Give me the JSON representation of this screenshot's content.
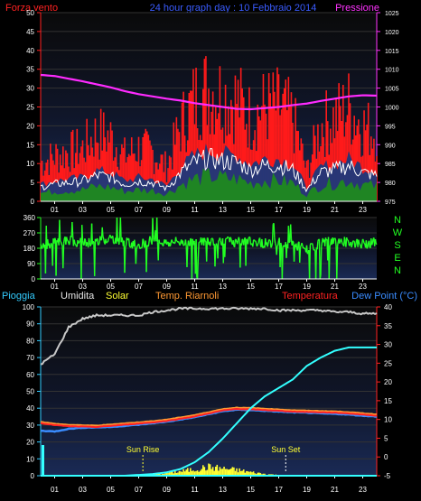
{
  "title": "24 hour graph day : 10 Febbraio 2014",
  "colors": {
    "background": "#000000",
    "plot_bg_top": "#0b0b0b",
    "plot_bg_bottom": "#15244a",
    "grid": "#3a3a3a",
    "axis_text": "#ffffff",
    "wind_speed": "#ff1a1a",
    "wind_avg": "#103a7a",
    "wind_white": "#ffffff",
    "wind_green": "#1f8a1f",
    "pressure": "#ff2bff",
    "direction": "#22ff22",
    "rain": "#2aa0ff",
    "humidity": "#bdbdbd",
    "solar": "#ffff33",
    "temp_feel": "#ff9a33",
    "temperature": "#ff2222",
    "dewpoint": "#3a8cff",
    "rain_cum": "#33ffff",
    "left_axis_label": "#33ccff",
    "right_axis_label": "#ff3333"
  },
  "charts": {
    "wind": {
      "left_label": "Forza vento",
      "right_label": "Pressione",
      "left_ticks": [
        "0",
        "5",
        "10",
        "15",
        "20",
        "25",
        "30",
        "35",
        "40",
        "45",
        "50"
      ],
      "right_ticks": [
        "975",
        "980",
        "985",
        "990",
        "995",
        "1000",
        "1005",
        "1010",
        "1015",
        "1020",
        "1025"
      ],
      "x_ticks": [
        "01",
        "03",
        "05",
        "07",
        "09",
        "11",
        "13",
        "15",
        "17",
        "19",
        "21",
        "23"
      ]
    },
    "direction": {
      "left_ticks": [
        "0",
        "90",
        "180",
        "270",
        "360"
      ],
      "compass": [
        "N",
        "W",
        "S",
        "E",
        "N"
      ],
      "x_ticks": [
        "01",
        "03",
        "05",
        "07",
        "09",
        "11",
        "13",
        "15",
        "17",
        "19",
        "21",
        "23"
      ]
    },
    "temp": {
      "legend": {
        "rain": "Pioggia",
        "humidity": "Umidita",
        "solar": "Solar",
        "feel": "Temp. Riarnoli",
        "temperature": "Temperatura",
        "dewpoint": "Dew Point (°C)"
      },
      "left_ticks": [
        "0",
        "10",
        "20",
        "30",
        "40",
        "50",
        "60",
        "70",
        "80",
        "90",
        "100"
      ],
      "right_ticks": [
        "-5",
        "0",
        "5",
        "10",
        "15",
        "20",
        "25",
        "30",
        "35",
        "40"
      ],
      "x_ticks": [
        "01",
        "03",
        "05",
        "07",
        "09",
        "11",
        "13",
        "15",
        "17",
        "19",
        "21",
        "23"
      ],
      "sunrise": "Sun Rise",
      "sunset": "Sun Set"
    }
  },
  "chart_data": [
    {
      "type": "line",
      "title": "24 hour graph day : 10 Febbraio 2014",
      "x": [
        0,
        1,
        2,
        3,
        4,
        5,
        6,
        7,
        8,
        9,
        10,
        11,
        12,
        13,
        14,
        15,
        16,
        17,
        18,
        19,
        20,
        21,
        22,
        23,
        24
      ],
      "ylim": [
        0,
        50
      ],
      "y2lim": [
        975,
        1025
      ],
      "series": [
        {
          "name": "Forza vento",
          "values": [
            10,
            12,
            13,
            14,
            18,
            17,
            12,
            14,
            13,
            9,
            20,
            27,
            30,
            28,
            27,
            22,
            25,
            25,
            22,
            8,
            20,
            22,
            25,
            20,
            18
          ]
        },
        {
          "name": "Pressione",
          "values": [
            1008.5,
            1008.2,
            1007.5,
            1006.8,
            1006.0,
            1005.2,
            1004.2,
            1003.4,
            1002.8,
            1002.2,
            1001.7,
            1001.0,
            1000.5,
            1000.0,
            999.5,
            999.4,
            999.7,
            1000.0,
            1000.5,
            1000.9,
            1001.6,
            1002.2,
            1002.8,
            1003.1,
            1003.0
          ]
        }
      ]
    },
    {
      "type": "scatter",
      "x": [
        0,
        1,
        2,
        3,
        4,
        5,
        6,
        7,
        8,
        9,
        10,
        11,
        12,
        13,
        14,
        15,
        16,
        17,
        18,
        19,
        20,
        21,
        22,
        23,
        24
      ],
      "ylim": [
        0,
        360
      ],
      "series": [
        {
          "name": "direction",
          "values": [
            200,
            210,
            230,
            210,
            220,
            240,
            215,
            200,
            230,
            210,
            220,
            215,
            220,
            225,
            215,
            220,
            210,
            215,
            205,
            170,
            210,
            220,
            215,
            205,
            215
          ]
        }
      ]
    },
    {
      "type": "line",
      "x": [
        0,
        1,
        2,
        3,
        4,
        5,
        6,
        7,
        8,
        9,
        10,
        11,
        12,
        13,
        14,
        15,
        16,
        17,
        18,
        19,
        20,
        21,
        22,
        23,
        24
      ],
      "ylim": [
        0,
        100
      ],
      "y2lim": [
        -5,
        40
      ],
      "sunrise_hour": 7.3,
      "sunset_hour": 17.5,
      "series": [
        {
          "name": "Umidita",
          "values": [
            66,
            72,
            88,
            93,
            95,
            95,
            95,
            95,
            97,
            98,
            99,
            99,
            99,
            99,
            99,
            99,
            99,
            98,
            98,
            98,
            98,
            97,
            97,
            96,
            96
          ]
        },
        {
          "name": "Pioggia",
          "values": [
            0,
            0,
            0,
            0,
            0,
            0,
            0,
            0.5,
            1,
            2,
            4,
            8,
            14,
            22,
            31,
            40,
            47,
            52,
            57,
            65,
            70,
            74,
            76,
            76,
            76
          ]
        },
        {
          "name": "Temperatura",
          "values": [
            9,
            8.5,
            8.2,
            8.1,
            8.0,
            8.3,
            8.6,
            8.9,
            9.2,
            9.6,
            10.2,
            10.8,
            11.6,
            12.4,
            12.8,
            12.7,
            12.5,
            12.3,
            12.1,
            12.0,
            11.9,
            11.8,
            11.6,
            11.3,
            11.0
          ]
        },
        {
          "name": "Temp. Riarnoli",
          "values": [
            9.3,
            8.8,
            8.5,
            8.4,
            8.3,
            8.6,
            8.9,
            9.2,
            9.5,
            9.9,
            10.5,
            11.1,
            11.9,
            12.7,
            13.1,
            13.0,
            12.8,
            12.6,
            12.4,
            12.3,
            12.2,
            12.1,
            11.9,
            11.6,
            11.3
          ]
        },
        {
          "name": "Dew Point (°C)",
          "values": [
            7.0,
            6.8,
            7.5,
            7.8,
            7.9,
            8.0,
            8.3,
            8.6,
            9.0,
            9.4,
            10.0,
            10.6,
            11.4,
            12.2,
            12.6,
            12.5,
            12.3,
            12.1,
            11.9,
            11.8,
            11.6,
            11.5,
            11.3,
            11.0,
            10.8
          ]
        },
        {
          "name": "Solar",
          "values": [
            0,
            0,
            0,
            0,
            0,
            0,
            0,
            0,
            0.3,
            0.8,
            1.2,
            1.8,
            2.4,
            2.0,
            1.6,
            1.0,
            0.5,
            0.2,
            0,
            0,
            0,
            0,
            0,
            0,
            0
          ]
        }
      ]
    }
  ]
}
